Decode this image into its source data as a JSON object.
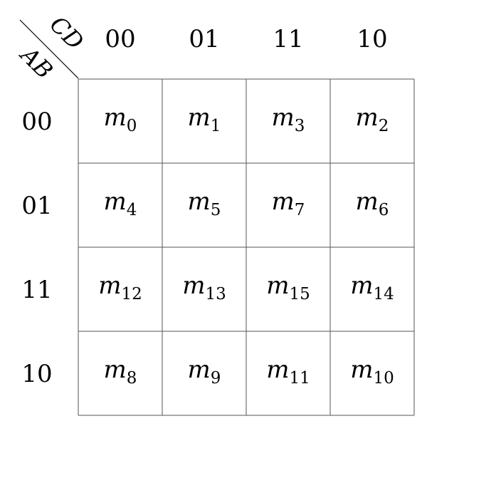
{
  "kmap": {
    "row_variable": "AB",
    "column_variable": "CD",
    "column_headers": [
      "00",
      "01",
      "11",
      "10"
    ],
    "row_headers": [
      "00",
      "01",
      "11",
      "10"
    ],
    "cells": [
      [
        {
          "symbol": "m",
          "index": "0"
        },
        {
          "symbol": "m",
          "index": "1"
        },
        {
          "symbol": "m",
          "index": "3"
        },
        {
          "symbol": "m",
          "index": "2"
        }
      ],
      [
        {
          "symbol": "m",
          "index": "4"
        },
        {
          "symbol": "m",
          "index": "5"
        },
        {
          "symbol": "m",
          "index": "7"
        },
        {
          "symbol": "m",
          "index": "6"
        }
      ],
      [
        {
          "symbol": "m",
          "index": "12"
        },
        {
          "symbol": "m",
          "index": "13"
        },
        {
          "symbol": "m",
          "index": "15"
        },
        {
          "symbol": "m",
          "index": "14"
        }
      ],
      [
        {
          "symbol": "m",
          "index": "8"
        },
        {
          "symbol": "m",
          "index": "9"
        },
        {
          "symbol": "m",
          "index": "11"
        },
        {
          "symbol": "m",
          "index": "10"
        }
      ]
    ]
  },
  "colors": {
    "line": "#555555",
    "text": "#000000"
  }
}
